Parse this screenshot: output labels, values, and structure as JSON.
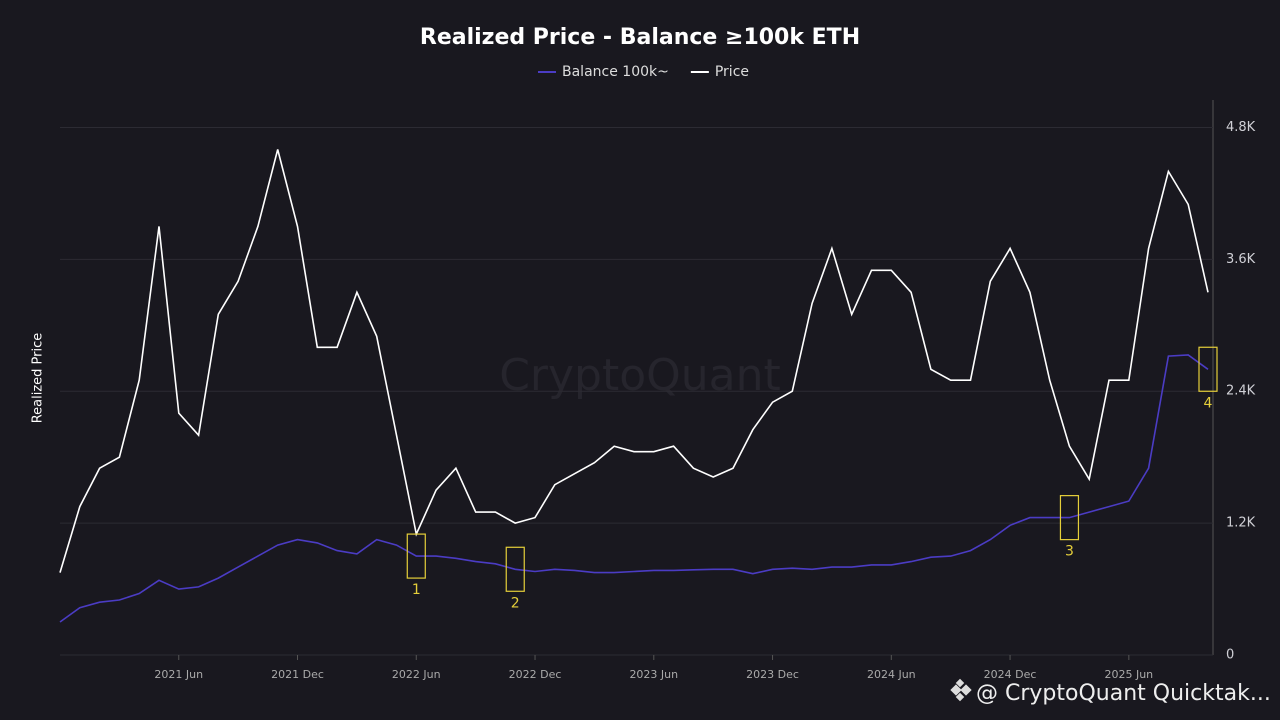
{
  "chart_data": {
    "type": "line",
    "title": "Realized Price - Balance ≥100k ETH",
    "ylabel": "Realized Price",
    "watermark": "CryptoQuant",
    "credit": "@ CryptoQuant Quicktak...",
    "x": [
      "2020-12",
      "2021-01",
      "2021-02",
      "2021-03",
      "2021-04",
      "2021-05",
      "2021-06",
      "2021-07",
      "2021-08",
      "2021-09",
      "2021-10",
      "2021-11",
      "2021-12",
      "2022-01",
      "2022-02",
      "2022-03",
      "2022-04",
      "2022-05",
      "2022-06",
      "2022-07",
      "2022-08",
      "2022-09",
      "2022-10",
      "2022-11",
      "2022-12",
      "2023-01",
      "2023-02",
      "2023-03",
      "2023-04",
      "2023-05",
      "2023-06",
      "2023-07",
      "2023-08",
      "2023-09",
      "2023-10",
      "2023-11",
      "2023-12",
      "2024-01",
      "2024-02",
      "2024-03",
      "2024-04",
      "2024-05",
      "2024-06",
      "2024-07",
      "2024-08",
      "2024-09",
      "2024-10",
      "2024-11",
      "2024-12",
      "2025-01",
      "2025-02",
      "2025-03",
      "2025-04",
      "2025-05",
      "2025-06",
      "2025-07",
      "2025-08",
      "2025-09",
      "2025-10"
    ],
    "series": [
      {
        "name": "Balance 100k~",
        "color": "#4b3cc4",
        "values": [
          300,
          430,
          480,
          500,
          560,
          680,
          600,
          620,
          700,
          800,
          900,
          1000,
          1050,
          1020,
          950,
          920,
          1050,
          1000,
          900,
          900,
          880,
          850,
          830,
          780,
          760,
          780,
          770,
          750,
          750,
          760,
          770,
          770,
          775,
          780,
          780,
          740,
          780,
          790,
          780,
          800,
          800,
          820,
          820,
          850,
          890,
          900,
          950,
          1050,
          1180,
          1250,
          1250,
          1250,
          1300,
          1350,
          1400,
          1700,
          2720,
          2730,
          2600
        ]
      },
      {
        "name": "Price",
        "color": "#ffffff",
        "values": [
          750,
          1350,
          1700,
          1800,
          2500,
          3900,
          2200,
          2000,
          3100,
          3400,
          3900,
          4600,
          3900,
          2800,
          2800,
          3300,
          2900,
          2000,
          1100,
          1500,
          1700,
          1300,
          1300,
          1200,
          1250,
          1550,
          1650,
          1750,
          1900,
          1850,
          1850,
          1900,
          1700,
          1620,
          1700,
          2050,
          2300,
          2400,
          3200,
          3700,
          3100,
          3500,
          3500,
          3300,
          2600,
          2500,
          2500,
          3400,
          3700,
          3300,
          2500,
          1900,
          1600,
          2500,
          2500,
          3700,
          4400,
          4100,
          3300
        ]
      }
    ],
    "ylim": [
      0,
      5050
    ],
    "yticks": [
      0,
      {
        "value": 1200,
        "label": "1.2K"
      },
      {
        "value": 2400,
        "label": "2.4K"
      },
      {
        "value": 3600,
        "label": "3.6K"
      },
      {
        "value": 4800,
        "label": "4.8K"
      }
    ],
    "xticks": [
      {
        "value": "2021-06",
        "label": "2021 Jun"
      },
      {
        "value": "2021-12",
        "label": "2021 Dec"
      },
      {
        "value": "2022-06",
        "label": "2022 Jun"
      },
      {
        "value": "2022-12",
        "label": "2022 Dec"
      },
      {
        "value": "2023-06",
        "label": "2023 Jun"
      },
      {
        "value": "2023-12",
        "label": "2023 Dec"
      },
      {
        "value": "2024-06",
        "label": "2024 Jun"
      },
      {
        "value": "2024-12",
        "label": "2024 Dec"
      },
      {
        "value": "2025-06",
        "label": "2025 Jun"
      }
    ],
    "grid": true,
    "legend": "top",
    "annotations": [
      {
        "x": "2022-06",
        "text": "1"
      },
      {
        "x": "2022-11",
        "text": "2"
      },
      {
        "x": "2025-03",
        "text": "3"
      },
      {
        "x": "2025-10",
        "text": "4"
      }
    ]
  }
}
